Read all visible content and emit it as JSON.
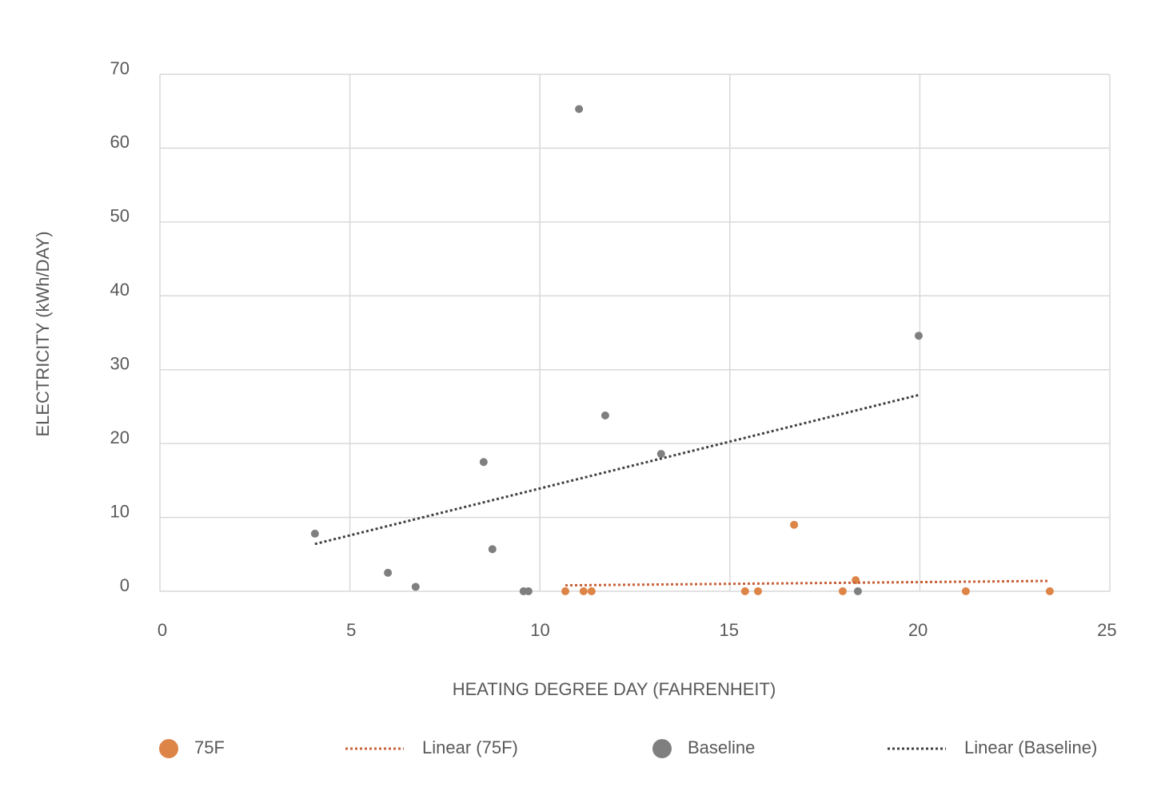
{
  "chart_data": {
    "type": "scatter",
    "x_label": "HEATING DEGREE DAY (FAHRENHEIT)",
    "y_label": "ELECTRICITY (kWh/DAY)",
    "xlim": [
      0,
      25
    ],
    "xticks": [
      0,
      5,
      10,
      15,
      20,
      25
    ],
    "ylim": [
      0,
      70
    ],
    "yticks": [
      0,
      10,
      20,
      30,
      40,
      50,
      60,
      70
    ],
    "grid": true,
    "legend": "bottom",
    "series": [
      {
        "name": "75F",
        "type": "scatter",
        "color": "#dd8447",
        "x": [
          10.67,
          11.15,
          11.36,
          15.4,
          15.74,
          16.69,
          17.97,
          18.31,
          21.21,
          23.42
        ],
        "values": [
          0,
          0,
          0,
          0,
          0,
          9.0,
          0,
          1.5,
          0,
          0
        ]
      },
      {
        "name": "Linear (75F)",
        "type": "line",
        "color": "#c8623a",
        "x": [
          10.67,
          23.42
        ],
        "values": [
          0.8,
          1.4
        ]
      },
      {
        "name": "Baseline",
        "type": "scatter",
        "color": "#7f7f7f",
        "x": [
          4.08,
          6.0,
          6.73,
          8.52,
          8.75,
          9.57,
          9.7,
          11.03,
          11.72,
          13.19,
          18.37,
          19.97
        ],
        "values": [
          7.8,
          2.5,
          0.6,
          17.5,
          5.7,
          0,
          0,
          65.3,
          23.8,
          18.6,
          0,
          34.6
        ]
      },
      {
        "name": "Linear (Baseline)",
        "type": "line",
        "color": "#404040",
        "x": [
          4.08,
          19.99
        ],
        "values": [
          6.4,
          26.6
        ]
      }
    ]
  }
}
